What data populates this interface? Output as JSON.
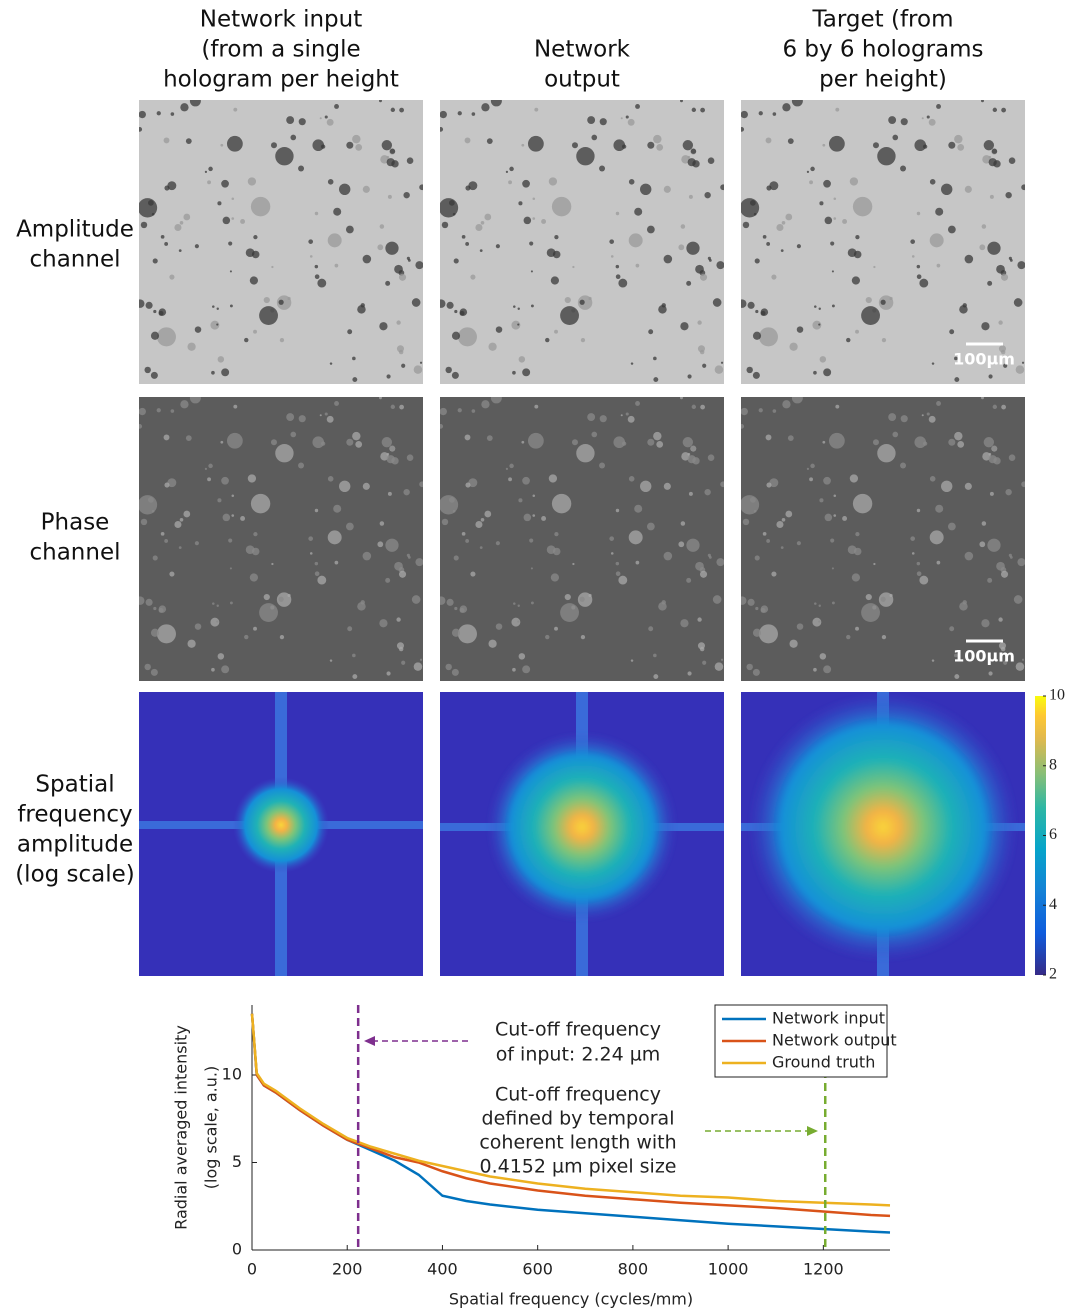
{
  "columns": [
    [
      "Network input",
      "(from a single",
      "hologram per height"
    ],
    [
      "Network",
      "output"
    ],
    [
      "Target (from",
      "6 by 6 holograms",
      "per height)"
    ]
  ],
  "rows": [
    [
      "Amplitude",
      "channel"
    ],
    [
      "Phase",
      "channel"
    ],
    [
      "Spatial",
      "frequency",
      "amplitude",
      "(log scale)"
    ]
  ],
  "scale_bar": "100µm",
  "colorbar": {
    "lim": [
      2,
      10
    ],
    "ticks": [
      2,
      4,
      6,
      8,
      10
    ]
  },
  "chart_data": {
    "type": "line",
    "xlabel": "Spatial frequency (cycles/mm)",
    "ylabel": [
      "Radial averaged intensity",
      "(log scale, a.u.)"
    ],
    "x": [
      0,
      10,
      25,
      50,
      100,
      150,
      200,
      250,
      300,
      350,
      400,
      450,
      500,
      600,
      700,
      800,
      900,
      1000,
      1100,
      1200,
      1300,
      1340
    ],
    "series": [
      {
        "name": "Network input",
        "color": "#0072bd",
        "values": [
          13.5,
          10,
          9.4,
          9.0,
          8.0,
          7.1,
          6.3,
          5.7,
          5.1,
          4.3,
          3.1,
          2.8,
          2.6,
          2.3,
          2.1,
          1.9,
          1.7,
          1.5,
          1.35,
          1.2,
          1.05,
          1.0
        ]
      },
      {
        "name": "Network output",
        "color": "#d95319",
        "values": [
          13.5,
          10,
          9.4,
          9.0,
          8.0,
          7.1,
          6.3,
          5.8,
          5.3,
          5.0,
          4.5,
          4.1,
          3.8,
          3.4,
          3.1,
          2.9,
          2.7,
          2.55,
          2.4,
          2.2,
          2.0,
          1.95
        ]
      },
      {
        "name": "Ground truth",
        "color": "#edb120",
        "values": [
          13.5,
          10.1,
          9.5,
          9.1,
          8.1,
          7.2,
          6.4,
          5.9,
          5.5,
          5.1,
          4.8,
          4.5,
          4.2,
          3.8,
          3.5,
          3.3,
          3.1,
          3.0,
          2.8,
          2.7,
          2.6,
          2.55
        ]
      }
    ],
    "xlim": [
      0,
      1340
    ],
    "ylim": [
      0,
      14
    ],
    "xticks": [
      0,
      200,
      400,
      600,
      800,
      1000,
      1200
    ],
    "yticks": [
      0,
      5,
      10
    ],
    "vlines": [
      {
        "x": 223,
        "color": "#7e2f8e"
      },
      {
        "x": 1204,
        "color": "#77ac30"
      }
    ],
    "annotations": [
      [
        "Cut-off frequency",
        "of input: 2.24 µm"
      ],
      [
        "Cut-off frequency",
        "defined by temporal",
        "coherent length with",
        "0.4152 µm pixel size"
      ]
    ],
    "legend": "upper right"
  }
}
